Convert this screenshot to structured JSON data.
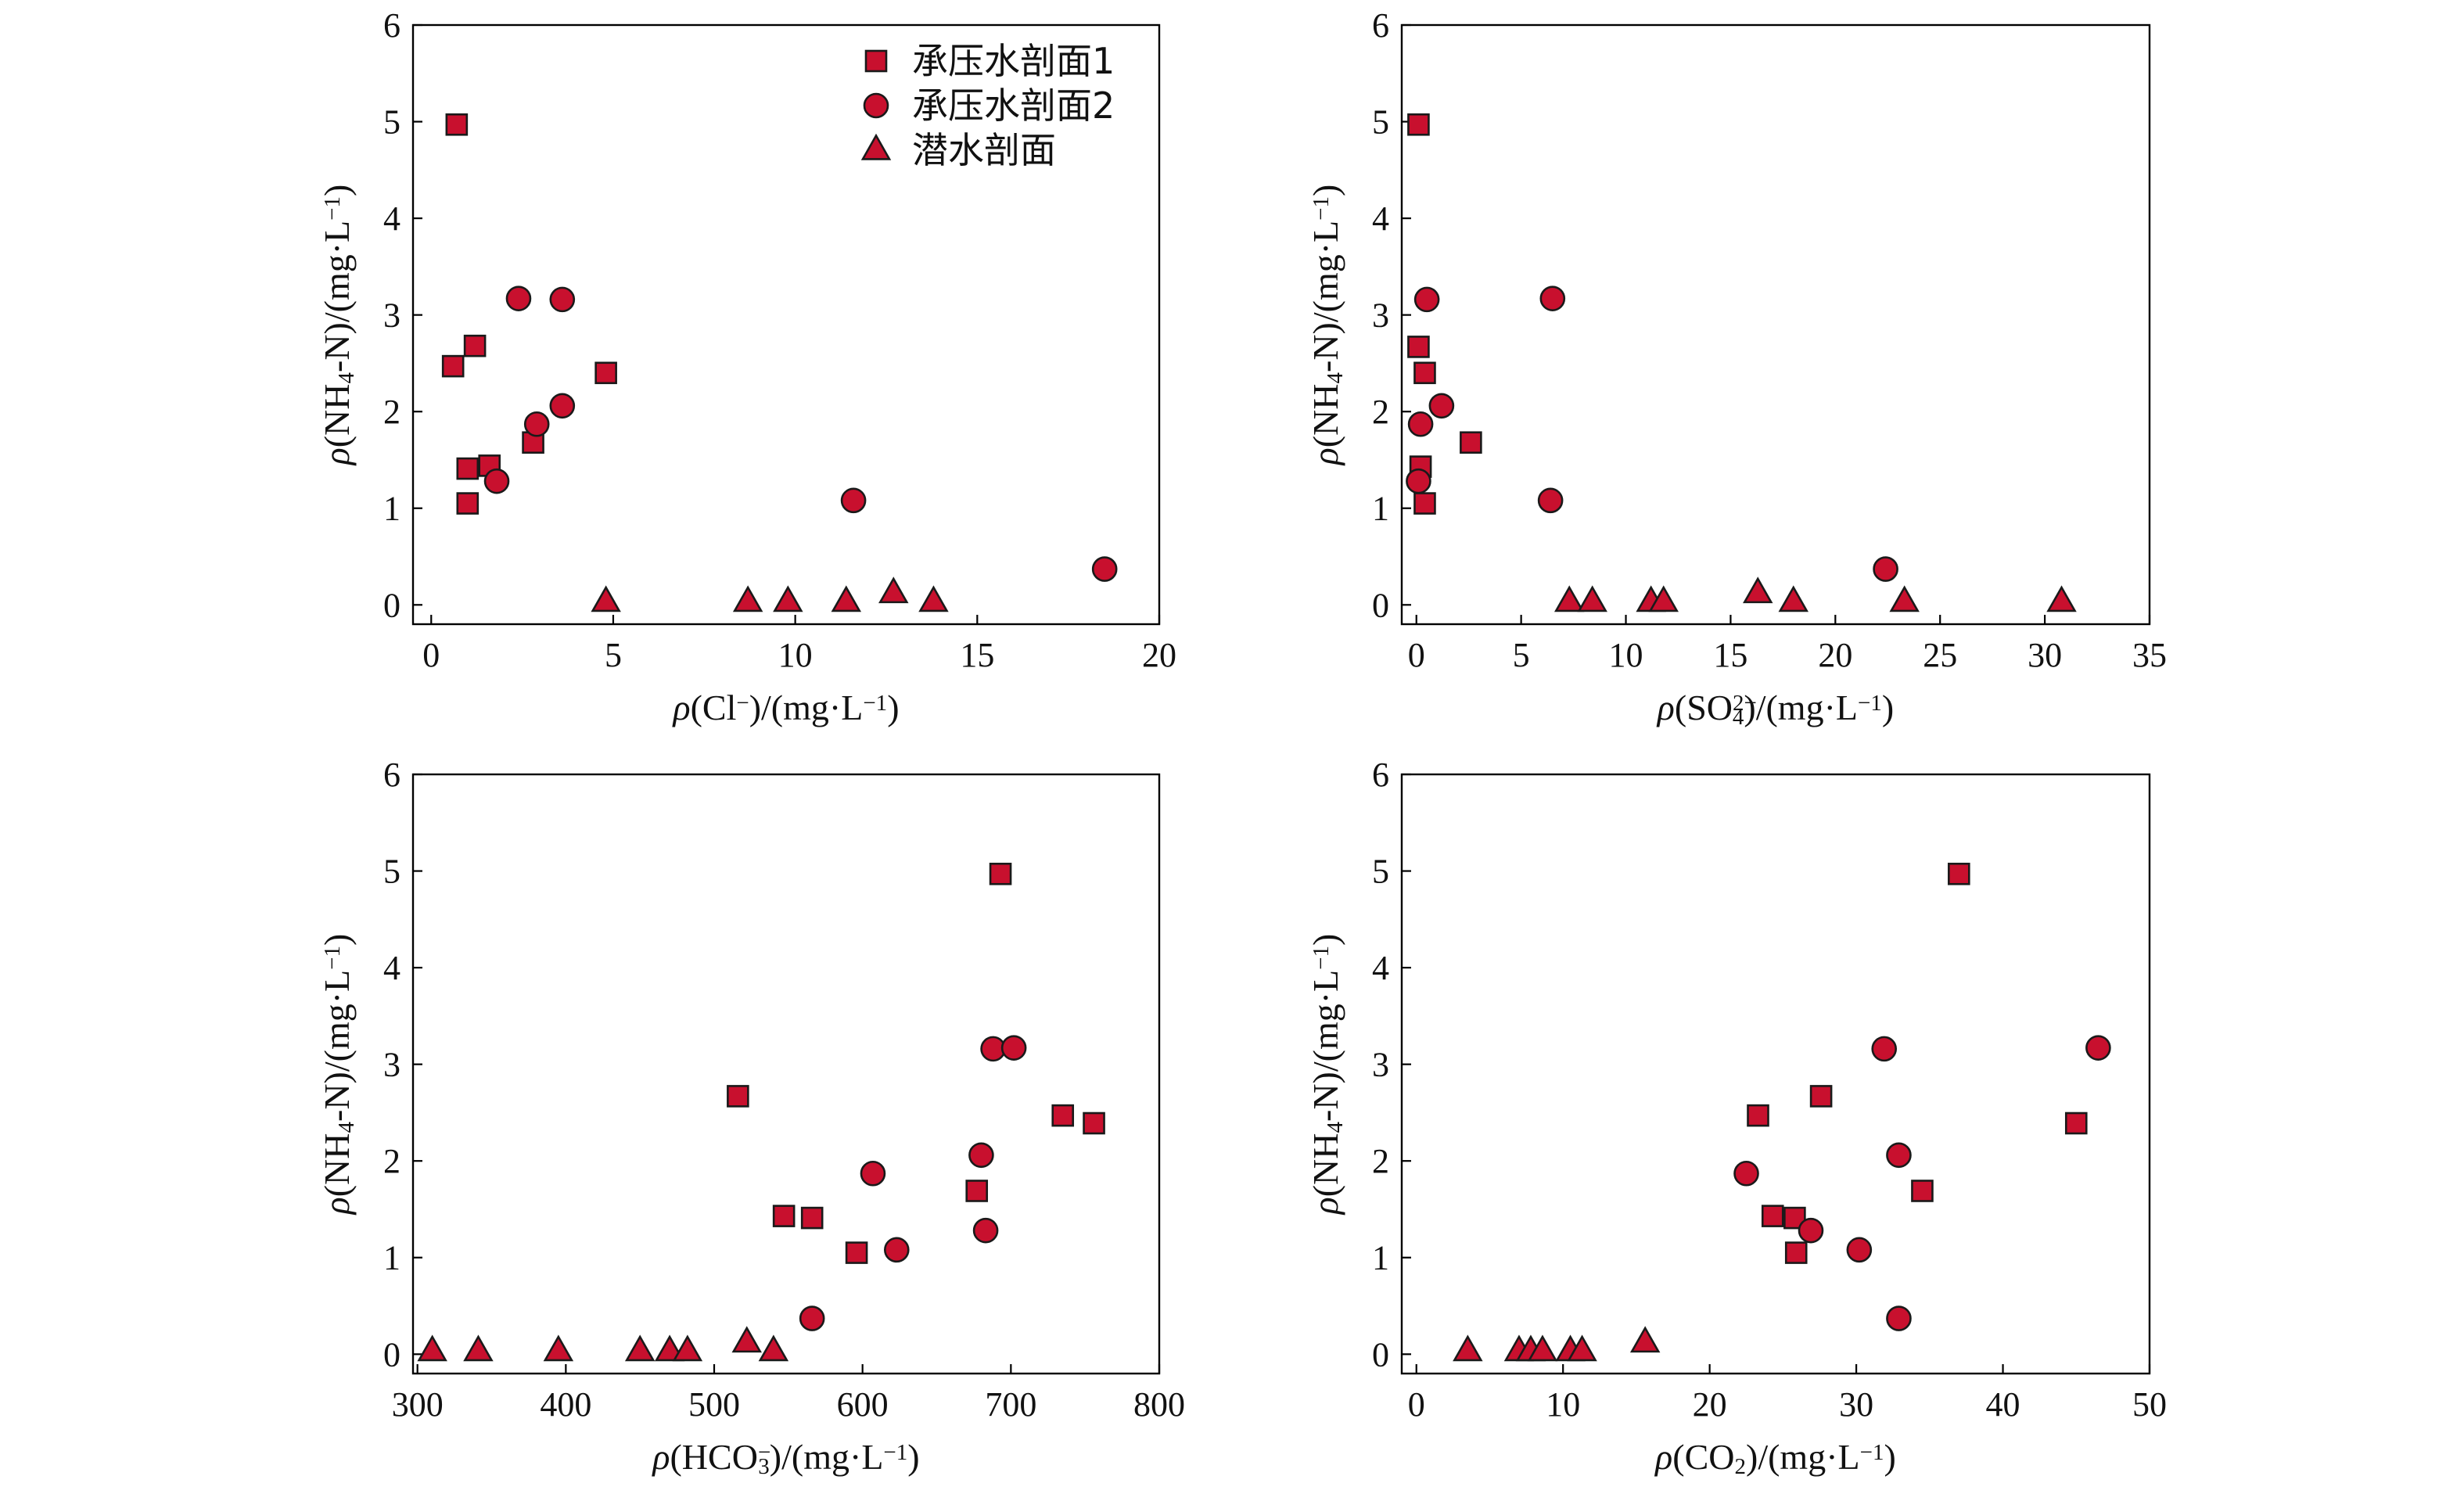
{
  "marker_color": "#c8102e",
  "marker_edge_color": "#1a1a1a",
  "legend": [
    {
      "label": "承压水剖面1",
      "marker": "square"
    },
    {
      "label": "承压水剖面2",
      "marker": "circle"
    },
    {
      "label": "潜水剖面",
      "marker": "triangle"
    }
  ],
  "chart_data": [
    {
      "type": "scatter",
      "xlabel_parts": [
        {
          "t": "ρ",
          "i": true
        },
        {
          "t": "(Cl"
        },
        {
          "t": "−",
          "sup": true
        },
        {
          "t": ")/(mg·L"
        },
        {
          "t": "−1",
          "sup": true
        },
        {
          "t": ")"
        }
      ],
      "ylabel_parts": [
        {
          "t": "ρ",
          "i": true
        },
        {
          "t": "(NH"
        },
        {
          "t": "4",
          "sub": true
        },
        {
          "t": "-N)/(mg·L"
        },
        {
          "t": "−1",
          "sup": true
        },
        {
          "t": ")"
        }
      ],
      "xlim": [
        -0.5,
        20
      ],
      "ylim": [
        -0.2,
        6
      ],
      "xticks": [
        0,
        5,
        10,
        15,
        20
      ],
      "yticks": [
        0,
        1,
        2,
        3,
        4,
        5,
        6
      ],
      "legend_position": "top-right",
      "series": [
        {
          "name": "承压水剖面1",
          "marker": "square",
          "points": [
            [
              0.7,
              4.97
            ],
            [
              0.6,
              2.47
            ],
            [
              1.2,
              2.68
            ],
            [
              4.8,
              2.4
            ],
            [
              2.8,
              1.68
            ],
            [
              1.0,
              1.41
            ],
            [
              1.6,
              1.44
            ],
            [
              1.0,
              1.05
            ]
          ]
        },
        {
          "name": "承压水剖面2",
          "marker": "circle",
          "points": [
            [
              2.4,
              3.17
            ],
            [
              3.6,
              3.16
            ],
            [
              3.6,
              2.06
            ],
            [
              2.9,
              1.87
            ],
            [
              1.8,
              1.28
            ],
            [
              11.6,
              1.08
            ],
            [
              18.5,
              0.37
            ]
          ]
        },
        {
          "name": "潜水剖面",
          "marker": "triangle",
          "points": [
            [
              4.8,
              0.03
            ],
            [
              8.7,
              0.03
            ],
            [
              9.8,
              0.03
            ],
            [
              11.4,
              0.03
            ],
            [
              12.7,
              0.12
            ],
            [
              13.8,
              0.03
            ]
          ]
        }
      ]
    },
    {
      "type": "scatter",
      "xlabel_parts": [
        {
          "t": "ρ",
          "i": true
        },
        {
          "t": "(SO"
        },
        {
          "t": "2−",
          "supsub": "4"
        },
        {
          "t": ")/(mg·L"
        },
        {
          "t": "−1",
          "sup": true
        },
        {
          "t": ")"
        }
      ],
      "ylabel_parts": [
        {
          "t": "ρ",
          "i": true
        },
        {
          "t": "(NH"
        },
        {
          "t": "4",
          "sub": true
        },
        {
          "t": "-N)/(mg·L"
        },
        {
          "t": "−1",
          "sup": true
        },
        {
          "t": ")"
        }
      ],
      "xlim": [
        -0.7,
        35
      ],
      "ylim": [
        -0.2,
        6
      ],
      "xticks": [
        0,
        5,
        10,
        15,
        20,
        25,
        30,
        35
      ],
      "yticks": [
        0,
        1,
        2,
        3,
        4,
        5,
        6
      ],
      "series": [
        {
          "name": "承压水剖面1",
          "marker": "square",
          "points": [
            [
              0.1,
              4.97
            ],
            [
              0.1,
              2.67
            ],
            [
              0.4,
              2.4
            ],
            [
              2.6,
              1.68
            ],
            [
              0.2,
              1.43
            ],
            [
              0.4,
              1.05
            ]
          ]
        },
        {
          "name": "承压水剖面2",
          "marker": "circle",
          "points": [
            [
              0.5,
              3.16
            ],
            [
              6.5,
              3.17
            ],
            [
              1.2,
              2.06
            ],
            [
              0.2,
              1.87
            ],
            [
              0.1,
              1.28
            ],
            [
              6.4,
              1.08
            ],
            [
              22.4,
              0.37
            ]
          ]
        },
        {
          "name": "潜水剖面",
          "marker": "triangle",
          "points": [
            [
              7.3,
              0.03
            ],
            [
              8.4,
              0.03
            ],
            [
              11.2,
              0.03
            ],
            [
              11.8,
              0.03
            ],
            [
              16.3,
              0.12
            ],
            [
              18.0,
              0.03
            ],
            [
              23.3,
              0.03
            ],
            [
              30.8,
              0.03
            ]
          ]
        }
      ]
    },
    {
      "type": "scatter",
      "xlabel_parts": [
        {
          "t": "ρ",
          "i": true
        },
        {
          "t": "(HCO"
        },
        {
          "t": "−",
          "supsub": "3"
        },
        {
          "t": ")/(mg·L"
        },
        {
          "t": "−1",
          "sup": true
        },
        {
          "t": ")"
        }
      ],
      "ylabel_parts": [
        {
          "t": "ρ",
          "i": true
        },
        {
          "t": "(NH"
        },
        {
          "t": "4",
          "sub": true
        },
        {
          "t": "-N)/(mg·L"
        },
        {
          "t": "−1",
          "sup": true
        },
        {
          "t": ")"
        }
      ],
      "xlim": [
        297,
        800
      ],
      "ylim": [
        -0.2,
        6
      ],
      "xticks": [
        300,
        400,
        500,
        600,
        700,
        800
      ],
      "yticks": [
        0,
        1,
        2,
        3,
        4,
        5,
        6
      ],
      "series": [
        {
          "name": "承压水剖面1",
          "marker": "square",
          "points": [
            [
              693,
              4.97
            ],
            [
              516,
              2.67
            ],
            [
              735,
              2.47
            ],
            [
              756,
              2.39
            ],
            [
              677,
              1.69
            ],
            [
              547,
              1.43
            ],
            [
              566,
              1.41
            ],
            [
              596,
              1.05
            ]
          ]
        },
        {
          "name": "承压水剖面2",
          "marker": "circle",
          "points": [
            [
              688,
              3.16
            ],
            [
              702,
              3.17
            ],
            [
              680,
              2.06
            ],
            [
              607,
              1.87
            ],
            [
              683,
              1.28
            ],
            [
              623,
              1.08
            ],
            [
              566,
              0.37
            ]
          ]
        },
        {
          "name": "潜水剖面",
          "marker": "triangle",
          "points": [
            [
              310,
              0.03
            ],
            [
              341,
              0.03
            ],
            [
              395,
              0.03
            ],
            [
              450,
              0.03
            ],
            [
              470,
              0.03
            ],
            [
              482,
              0.03
            ],
            [
              522,
              0.12
            ],
            [
              540,
              0.03
            ]
          ]
        }
      ]
    },
    {
      "type": "scatter",
      "xlabel_parts": [
        {
          "t": "ρ",
          "i": true
        },
        {
          "t": "(CO"
        },
        {
          "t": "2",
          "sub": true
        },
        {
          "t": ")/(mg·L"
        },
        {
          "t": "−1",
          "sup": true
        },
        {
          "t": ")"
        }
      ],
      "ylabel_parts": [
        {
          "t": "ρ",
          "i": true
        },
        {
          "t": "(NH"
        },
        {
          "t": "4",
          "sub": true
        },
        {
          "t": "-N)/(mg·L"
        },
        {
          "t": "−1",
          "sup": true
        },
        {
          "t": ")"
        }
      ],
      "xlim": [
        -1,
        50
      ],
      "ylim": [
        -0.2,
        6
      ],
      "xticks": [
        0,
        10,
        20,
        30,
        40,
        50
      ],
      "yticks": [
        0,
        1,
        2,
        3,
        4,
        5,
        6
      ],
      "series": [
        {
          "name": "承压水剖面1",
          "marker": "square",
          "points": [
            [
              37.0,
              4.97
            ],
            [
              23.3,
              2.47
            ],
            [
              27.6,
              2.67
            ],
            [
              45.0,
              2.39
            ],
            [
              34.5,
              1.69
            ],
            [
              24.3,
              1.43
            ],
            [
              25.8,
              1.41
            ],
            [
              25.9,
              1.05
            ]
          ]
        },
        {
          "name": "承压水剖面2",
          "marker": "circle",
          "points": [
            [
              31.9,
              3.16
            ],
            [
              46.5,
              3.17
            ],
            [
              32.9,
              2.06
            ],
            [
              22.5,
              1.87
            ],
            [
              26.9,
              1.28
            ],
            [
              30.2,
              1.08
            ],
            [
              32.9,
              0.37
            ]
          ]
        },
        {
          "name": "潜水剖面",
          "marker": "triangle",
          "points": [
            [
              3.5,
              0.03
            ],
            [
              7.0,
              0.03
            ],
            [
              7.8,
              0.03
            ],
            [
              8.6,
              0.03
            ],
            [
              10.5,
              0.03
            ],
            [
              11.3,
              0.03
            ],
            [
              15.6,
              0.12
            ]
          ]
        }
      ]
    }
  ]
}
